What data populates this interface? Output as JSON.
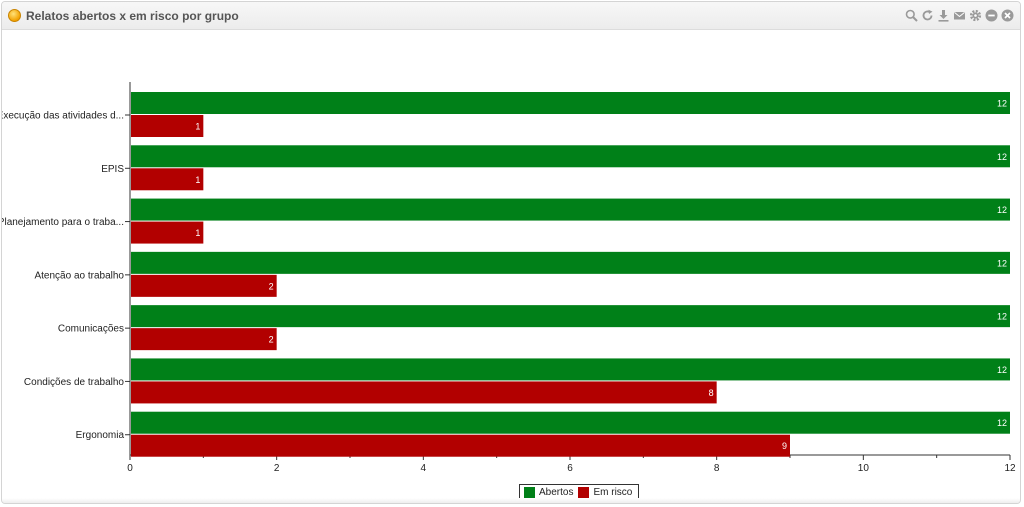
{
  "window": {
    "title": "Relatos abertos x em risco por grupo",
    "tools": [
      "search-icon",
      "refresh-icon",
      "download-icon",
      "email-icon",
      "gear-icon",
      "minimize-icon",
      "close-icon"
    ]
  },
  "colors": {
    "abertos": "#008018",
    "em_risco": "#b20000"
  },
  "chart_data": {
    "type": "bar",
    "orientation": "horizontal",
    "title": "Relatos abertos x em risco por grupo",
    "categories": [
      "Execução das atividades d...",
      "EPIS",
      "Planejamento para o traba...",
      "Atenção ao trabalho",
      "Comunicações",
      "Condições de trabalho",
      "Ergonomia"
    ],
    "series": [
      {
        "name": "Abertos",
        "values": [
          12,
          12,
          12,
          12,
          12,
          12,
          12
        ]
      },
      {
        "name": "Em risco",
        "values": [
          1,
          1,
          1,
          2,
          2,
          8,
          9
        ]
      }
    ],
    "xlim": [
      0,
      12
    ],
    "xticks": [
      0,
      2,
      4,
      6,
      8,
      10,
      12
    ],
    "grid": false,
    "legend_position": "bottom-center",
    "data_labels": true
  }
}
